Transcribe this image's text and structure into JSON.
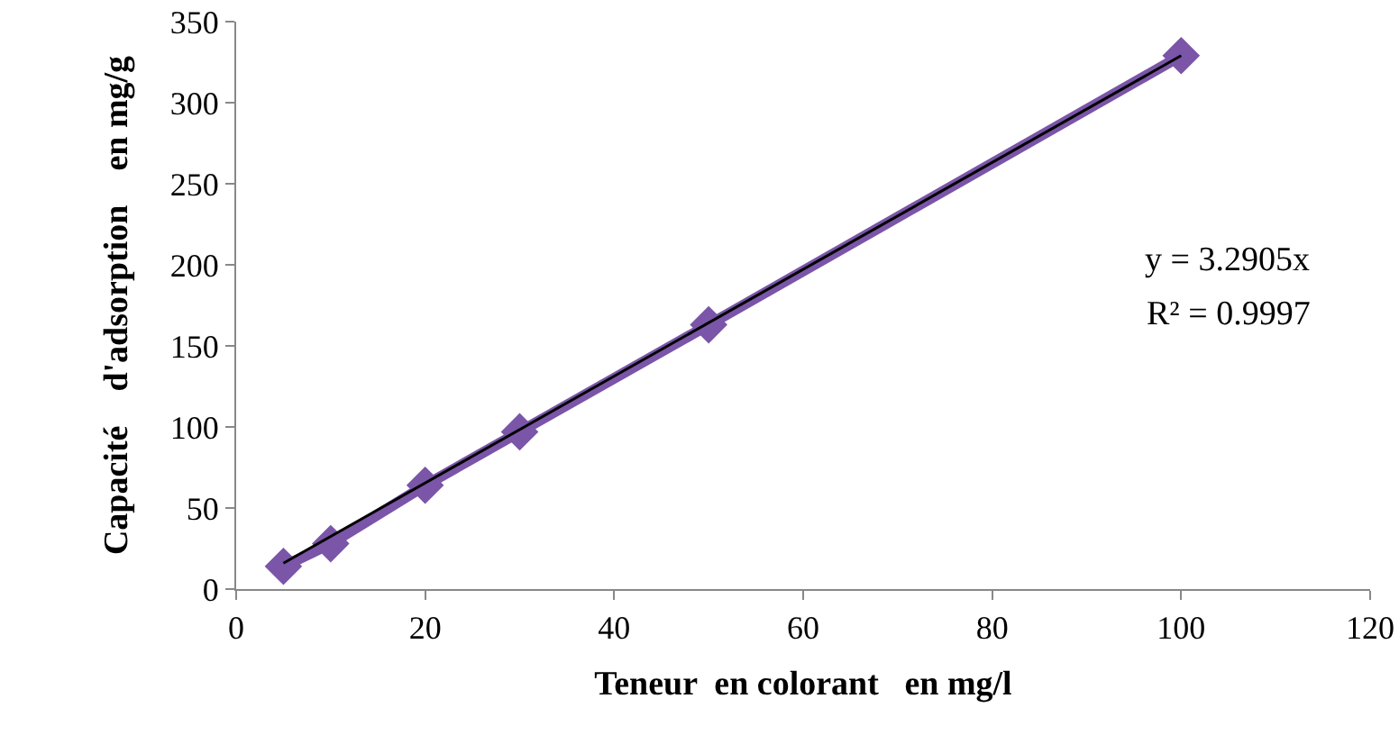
{
  "chart_data": {
    "type": "line",
    "xlabel": "Teneur  en colorant   en mg/l",
    "ylabel": "Capacité    d'adsorption    en mg/g",
    "x": [
      5,
      10,
      20,
      30,
      50,
      100
    ],
    "series": [
      {
        "color": "#7a55a8",
        "values": [
          14,
          28,
          64,
          97,
          163,
          329
        ],
        "marker": "diamond"
      },
      {
        "color": "#000000",
        "x": [
          5,
          100
        ],
        "values": [
          16,
          329
        ],
        "marker": "none"
      }
    ],
    "xlim": [
      0,
      120
    ],
    "xticks": [
      0,
      20,
      40,
      60,
      80,
      100,
      120
    ],
    "ylim": [
      0,
      350
    ],
    "yticks": [
      0,
      50,
      100,
      150,
      200,
      250,
      300,
      350
    ],
    "grid": false,
    "annotations": [
      "y = 3.2905x",
      "R² = 0.9997"
    ]
  }
}
